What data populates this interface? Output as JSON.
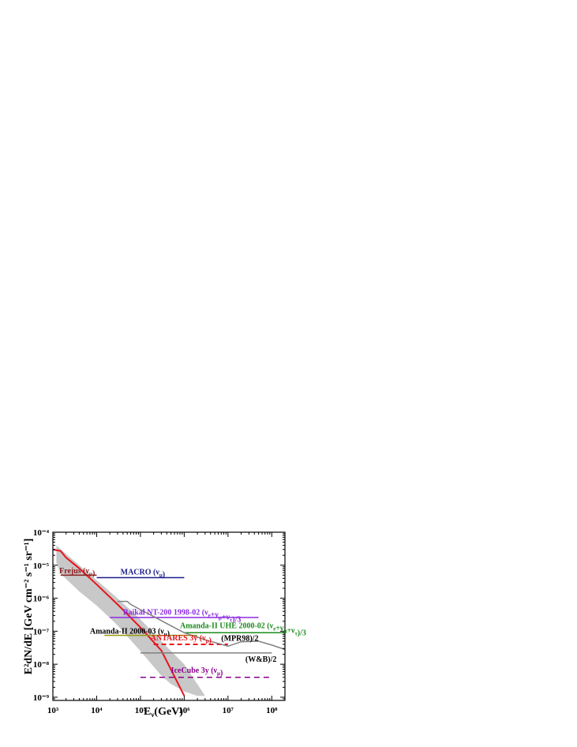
{
  "chart_data": {
    "type": "line",
    "xlabel": "E_ν(GeV)",
    "ylabel": "E²dN/dE [GeV cm⁻² s⁻¹ sr⁻¹]",
    "xscale": "log",
    "yscale": "log",
    "xlim": [
      1000,
      200000000
    ],
    "ylim": [
      8e-10,
      0.0001
    ],
    "x_tick_labels": [
      "10³",
      "10⁴",
      "10⁵",
      "10⁶",
      "10⁷",
      "10⁸"
    ],
    "x_tick_values": [
      1000,
      10000,
      100000,
      1000000,
      10000000,
      100000000
    ],
    "y_tick_labels": [
      "10⁻⁹",
      "10⁻⁸",
      "10⁻⁷",
      "10⁻⁶",
      "10⁻⁵",
      "10⁻⁴"
    ],
    "y_tick_values": [
      1e-09,
      1e-08,
      1e-07,
      1e-06,
      1e-05,
      0.0001
    ],
    "grid": false,
    "colors": {
      "red": "#e8141c",
      "darkred": "#8b1a1a",
      "navy": "#1c1c8c",
      "purple": "#8a2be2",
      "green": "#1e8c1e",
      "olive": "#9a9a10",
      "gray": "#808080",
      "darkmagenta": "#8b008b",
      "band": "#c8c8c8"
    },
    "band": {
      "x": [
        1200,
        2000,
        4000,
        10000,
        30000,
        100000,
        300000,
        1000000,
        3000000,
        2000000,
        1000000,
        500000,
        300000,
        100000,
        30000,
        10000,
        4000,
        1500,
        1200
      ],
      "y": [
        4e-05,
        2.2e-05,
        1e-05,
        3.5e-06,
        1e-06,
        2.3e-07,
        5e-08,
        1e-08,
        1.1e-09,
        1.1e-09,
        1.5e-09,
        2.5e-09,
        4.5e-09,
        2.5e-08,
        1.5e-07,
        6e-07,
        1.6e-06,
        5.5e-06,
        1.2e-05
      ]
    },
    "series": [
      {
        "color": "red",
        "style": "solid",
        "x": [
          1000,
          1500,
          2000,
          4000,
          10000,
          30000,
          100000,
          300000,
          1000000
        ],
        "y": [
          3e-05,
          2.7e-05,
          1.7e-05,
          8e-06,
          2.6e-06,
          6.5e-07,
          1.3e-07,
          2.6e-08,
          1.1e-09
        ]
      },
      {
        "color": "darkred",
        "style": "solid",
        "x": [
          1500,
          10000
        ],
        "y": [
          5e-06,
          5e-06
        ]
      },
      {
        "color": "navy",
        "style": "solid",
        "x": [
          10000,
          1000000
        ],
        "y": [
          4.2e-06,
          4.2e-06
        ]
      },
      {
        "color": "purple",
        "style": "solid",
        "x": [
          20000,
          50000000
        ],
        "y": [
          2.6e-07,
          2.6e-07
        ]
      },
      {
        "color": "green",
        "style": "solid",
        "x": [
          1000000,
          200000000
        ],
        "y": [
          9e-08,
          9e-08
        ]
      },
      {
        "color": "olive",
        "style": "solid",
        "x": [
          15000,
          2000000
        ],
        "y": [
          7.5e-08,
          7.5e-08
        ]
      },
      {
        "color": "red",
        "style": "dashed",
        "x": [
          200000,
          10000000
        ],
        "y": [
          4e-08,
          4e-08
        ]
      },
      {
        "color": "gray",
        "style": "solid",
        "x": [
          30000,
          50000,
          60000,
          100000,
          200000,
          400000,
          1000000,
          3000000,
          10000000,
          20000000,
          50000000,
          100000000,
          200000000
        ],
        "y": [
          8e-07,
          8e-07,
          6.5e-07,
          4.5e-07,
          2.8e-07,
          1.7e-07,
          9e-08,
          5.5e-08,
          3.5e-08,
          4.8e-08,
          5e-08,
          3.8e-08,
          2.8e-08
        ]
      },
      {
        "color": "gray",
        "style": "solid",
        "x": [
          100000,
          100000000
        ],
        "y": [
          2.2e-08,
          2.2e-08
        ]
      },
      {
        "color": "darkmagenta",
        "style": "dashed",
        "x": [
          100000,
          100000000
        ],
        "y": [
          4e-09,
          4e-09
        ]
      }
    ],
    "annotations": [
      {
        "text": "Frejus (ν",
        "sub": "μ",
        "tail": ")",
        "color": "darkred",
        "x": 1400,
        "y": 5.7e-06,
        "anchor": "start"
      },
      {
        "text": "MACRO (ν",
        "sub": "μ",
        "tail": ")",
        "color": "navy",
        "x": 35000,
        "y": 5.3e-06,
        "anchor": "start"
      },
      {
        "text": "Baikal NT-200 1998-02 (ν",
        "sub": "e",
        "tail": "+ν",
        "sub2": "μ",
        "tail2": "+ν",
        "sub3": "τ",
        "tail3": ")/3",
        "color": "purple",
        "x": 40000,
        "y": 3.2e-07,
        "anchor": "start"
      },
      {
        "text": "Amanda-II UHE 2000-02 (ν",
        "sub": "e",
        "tail": "+ν",
        "sub2": "μ",
        "tail2": "+ν",
        "sub3": "τ",
        "tail3": ")/3",
        "color": "green",
        "x": 800000,
        "y": 1.25e-07,
        "anchor": "start"
      },
      {
        "text": "Amanda-II  2000-03 (ν",
        "sub": "μ",
        "tail": ")",
        "color": "black",
        "x": 7000,
        "y": 8.5e-08,
        "anchor": "start"
      },
      {
        "text": "ANTARES 3y (ν",
        "sub": "μ",
        "tail": ")",
        "color": "red",
        "x": 170000,
        "y": 5.2e-08,
        "anchor": "start"
      },
      {
        "text": "(MPR98)/2",
        "color": "black",
        "x": 7000000,
        "y": 5.1e-08,
        "anchor": "start"
      },
      {
        "text": "(W&B)/2",
        "color": "black",
        "x": 25000000,
        "y": 1.2e-08,
        "anchor": "start"
      },
      {
        "text": "IceCube 3y (ν",
        "sub": "μ",
        "tail": ")",
        "color": "darkmagenta",
        "x": 500000,
        "y": 5.5e-09,
        "anchor": "start"
      }
    ]
  }
}
